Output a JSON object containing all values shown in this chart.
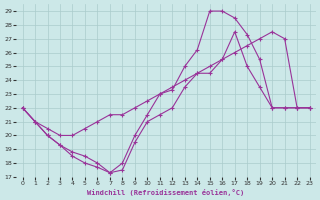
{
  "xlabel": "Windchill (Refroidissement éolien,°C)",
  "bg_color": "#cce8e8",
  "line_color": "#993399",
  "grid_color": "#aacccc",
  "xlim": [
    -0.5,
    23.5
  ],
  "ylim": [
    17,
    29.5
  ],
  "xticks": [
    0,
    1,
    2,
    3,
    4,
    5,
    6,
    7,
    8,
    9,
    10,
    11,
    12,
    13,
    14,
    15,
    16,
    17,
    18,
    19,
    20,
    21,
    22,
    23
  ],
  "yticks": [
    17,
    18,
    19,
    20,
    21,
    22,
    23,
    24,
    25,
    26,
    27,
    28,
    29
  ],
  "curve1_x": [
    0,
    1,
    2,
    3,
    4,
    5,
    6,
    7,
    8,
    9,
    10,
    11,
    12,
    13,
    14,
    15,
    16,
    17,
    18,
    19,
    20,
    21,
    22,
    23
  ],
  "curve1_y": [
    22,
    21,
    20.5,
    20,
    20,
    20.5,
    21,
    21.5,
    21.5,
    22,
    22.5,
    23,
    23.5,
    24,
    24.5,
    25,
    25.5,
    26,
    26.5,
    27,
    27.5,
    27,
    22,
    22
  ],
  "curve2_x": [
    0,
    1,
    2,
    3,
    4,
    5,
    6,
    7,
    8,
    9,
    10,
    11,
    12,
    13,
    14,
    15,
    16,
    17,
    18,
    19,
    20,
    21,
    22,
    23
  ],
  "curve2_y": [
    22,
    21,
    20,
    19.3,
    18.5,
    18,
    17.7,
    17.3,
    18,
    20,
    21.5,
    23,
    23.3,
    25,
    26.2,
    29,
    29,
    28.5,
    27.3,
    25.5,
    22,
    22,
    22,
    22
  ],
  "curve3_x": [
    0,
    1,
    2,
    3,
    4,
    5,
    6,
    7,
    8,
    9,
    10,
    11,
    12,
    13,
    14,
    15,
    16,
    17,
    18,
    19,
    20,
    21,
    22,
    23
  ],
  "curve3_y": [
    22,
    21,
    20,
    19.3,
    18.8,
    18.5,
    18,
    17.3,
    17.5,
    19.5,
    21,
    21.5,
    22,
    23.5,
    24.5,
    24.5,
    25.5,
    27.5,
    25,
    23.5,
    22,
    22,
    22,
    22
  ]
}
